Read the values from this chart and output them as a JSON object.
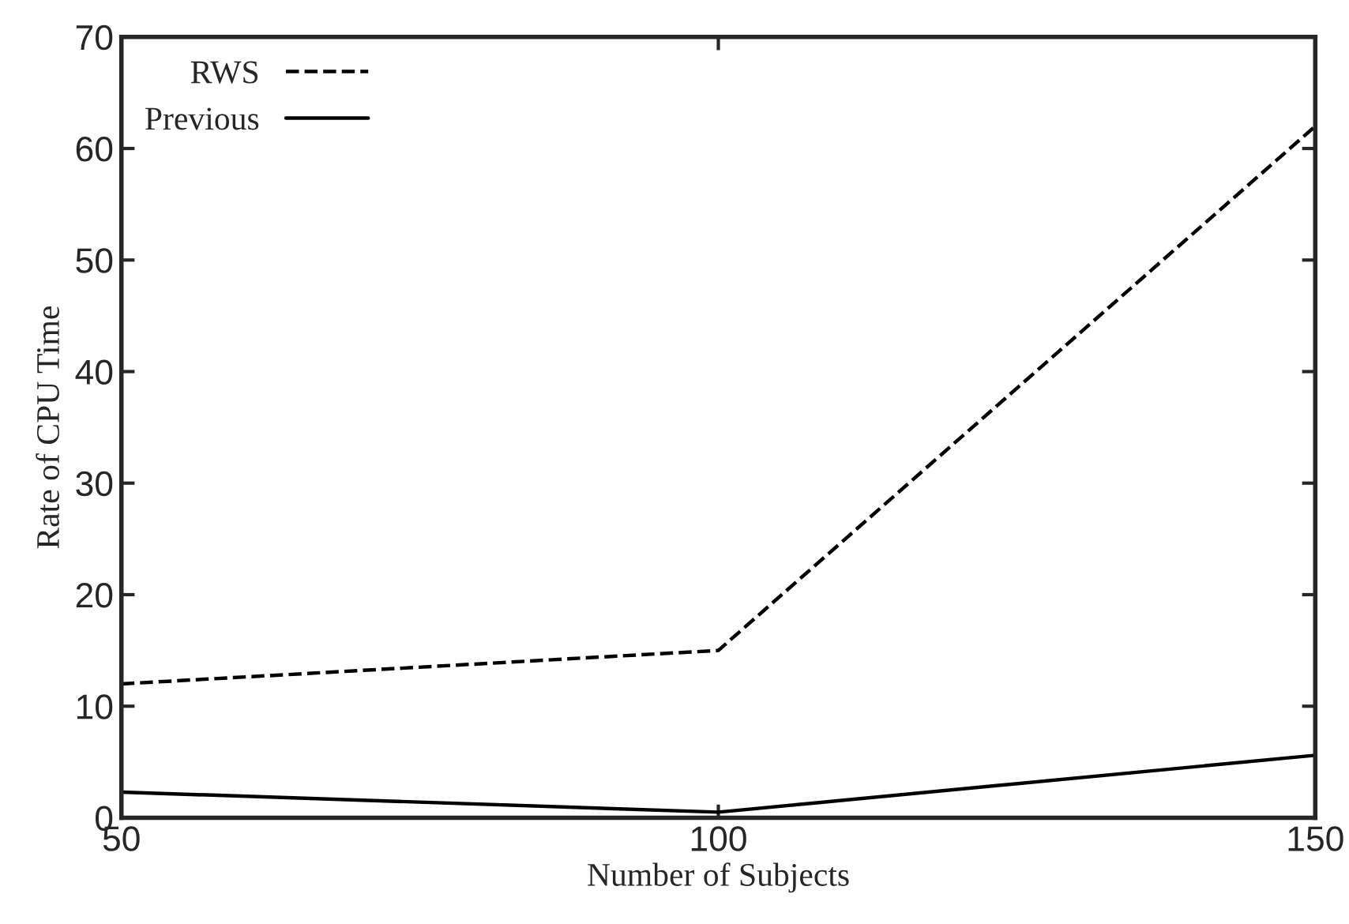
{
  "chart_data": {
    "type": "line",
    "xlabel": "Number of Subjects",
    "ylabel": "Rate of CPU Time",
    "x": [
      50,
      100,
      150
    ],
    "series": [
      {
        "name": "RWS",
        "color": "#000000",
        "values": [
          12,
          15,
          62
        ],
        "line_style": "dashed"
      },
      {
        "name": "Previous",
        "color": "#000000",
        "values": [
          2.3,
          0.5,
          5.6
        ],
        "line_style": "solid"
      }
    ],
    "xlim": [
      50,
      150
    ],
    "xticks": [
      50,
      100,
      150
    ],
    "ylim": [
      0,
      70
    ],
    "yticks": [
      0,
      10,
      20,
      30,
      40,
      50,
      60,
      70
    ],
    "grid": false,
    "legend": "top left",
    "marker": "none"
  }
}
